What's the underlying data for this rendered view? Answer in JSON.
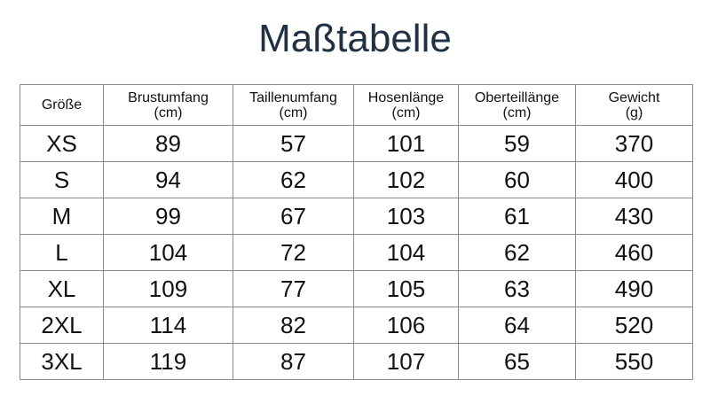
{
  "title": "Maßtabelle",
  "table": {
    "headers": [
      {
        "label": "Größe",
        "unit": ""
      },
      {
        "label": "Brustumfang",
        "unit": "(cm)"
      },
      {
        "label": "Taillenumfang",
        "unit": "(cm)"
      },
      {
        "label": "Hosenlänge",
        "unit": "(cm)"
      },
      {
        "label": "Oberteillänge",
        "unit": "(cm)"
      },
      {
        "label": "Gewicht",
        "unit": "(g)"
      }
    ],
    "rows": [
      {
        "size": "XS",
        "brust": "89",
        "taille": "57",
        "hose": "101",
        "oberteil": "59",
        "gewicht": "370"
      },
      {
        "size": "S",
        "brust": "94",
        "taille": "62",
        "hose": "102",
        "oberteil": "60",
        "gewicht": "400"
      },
      {
        "size": "M",
        "brust": "99",
        "taille": "67",
        "hose": "103",
        "oberteil": "61",
        "gewicht": "430"
      },
      {
        "size": "L",
        "brust": "104",
        "taille": "72",
        "hose": "104",
        "oberteil": "62",
        "gewicht": "460"
      },
      {
        "size": "XL",
        "brust": "109",
        "taille": "77",
        "hose": "105",
        "oberteil": "63",
        "gewicht": "490"
      },
      {
        "size": "2XL",
        "brust": "114",
        "taille": "82",
        "hose": "106",
        "oberteil": "64",
        "gewicht": "520"
      },
      {
        "size": "3XL",
        "brust": "119",
        "taille": "87",
        "hose": "107",
        "oberteil": "65",
        "gewicht": "550"
      }
    ]
  },
  "colors": {
    "title": "#1f3142",
    "border": "#8a8a8a",
    "text": "#111111"
  }
}
